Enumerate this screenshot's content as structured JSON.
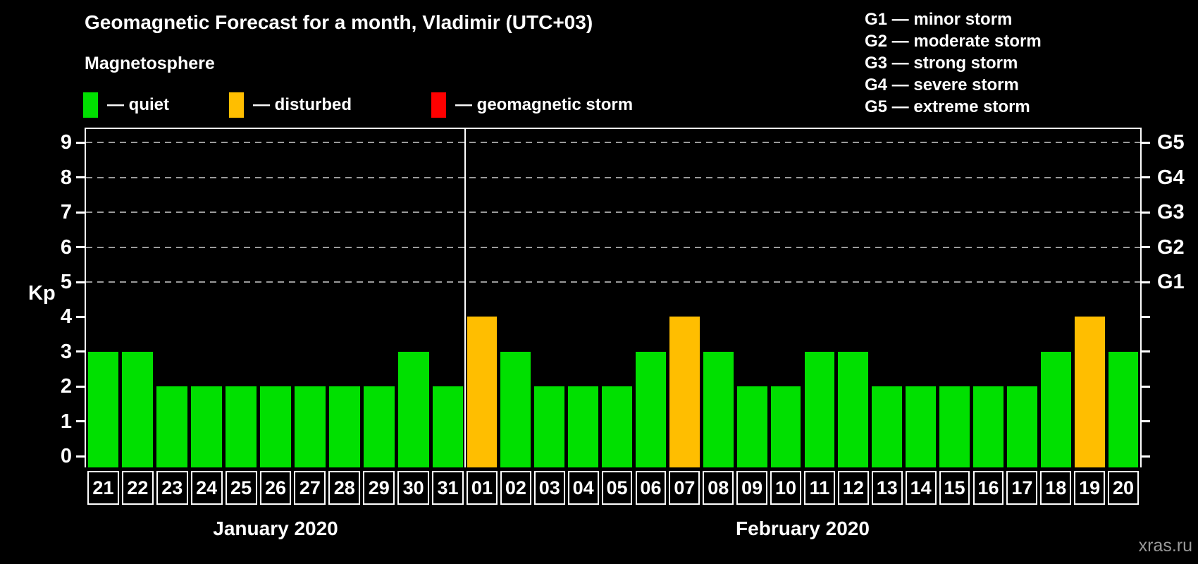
{
  "header": {
    "title": "Geomagnetic Forecast for a month, Vladimir (UTC+03)"
  },
  "legend": {
    "title": "Magnetosphere",
    "items": [
      {
        "name": "quiet",
        "label": "— quiet",
        "color": "#00e000"
      },
      {
        "name": "disturbed",
        "label": "— disturbed",
        "color": "#ffbe00"
      },
      {
        "name": "geomagnetic-storm",
        "label": "— geomagnetic storm",
        "color": "#ff0000"
      }
    ]
  },
  "g_legend": {
    "items": [
      {
        "label": "G1 — minor storm"
      },
      {
        "label": "G2 — moderate storm"
      },
      {
        "label": "G3 — strong storm"
      },
      {
        "label": "G4 — severe storm"
      },
      {
        "label": "G5 — extreme storm"
      }
    ]
  },
  "chart_data": {
    "type": "bar",
    "title": "Geomagnetic Forecast for a month, Vladimir (UTC+03)",
    "ylabel": "Kp",
    "ylim": [
      0,
      9
    ],
    "y_ticks": [
      0,
      1,
      2,
      3,
      4,
      5,
      6,
      7,
      8,
      9
    ],
    "grid_levels": [
      5,
      6,
      7,
      8,
      9
    ],
    "grid_style": "dashed",
    "right_axis_labels": [
      {
        "label": "G1",
        "kp": 5
      },
      {
        "label": "G2",
        "kp": 6
      },
      {
        "label": "G3",
        "kp": 7
      },
      {
        "label": "G4",
        "kp": 8
      },
      {
        "label": "G5",
        "kp": 9
      }
    ],
    "state_colors": {
      "quiet": "#00e000",
      "disturbed": "#ffbe00",
      "storm": "#ff0000"
    },
    "months": [
      {
        "label": "January 2020",
        "days": [
          {
            "date": "21",
            "kp": 3,
            "state": "quiet"
          },
          {
            "date": "22",
            "kp": 3,
            "state": "quiet"
          },
          {
            "date": "23",
            "kp": 2,
            "state": "quiet"
          },
          {
            "date": "24",
            "kp": 2,
            "state": "quiet"
          },
          {
            "date": "25",
            "kp": 2,
            "state": "quiet"
          },
          {
            "date": "26",
            "kp": 2,
            "state": "quiet"
          },
          {
            "date": "27",
            "kp": 2,
            "state": "quiet"
          },
          {
            "date": "28",
            "kp": 2,
            "state": "quiet"
          },
          {
            "date": "29",
            "kp": 2,
            "state": "quiet"
          },
          {
            "date": "30",
            "kp": 3,
            "state": "quiet"
          },
          {
            "date": "31",
            "kp": 2,
            "state": "quiet"
          }
        ]
      },
      {
        "label": "February 2020",
        "days": [
          {
            "date": "01",
            "kp": 4,
            "state": "disturbed"
          },
          {
            "date": "02",
            "kp": 3,
            "state": "quiet"
          },
          {
            "date": "03",
            "kp": 2,
            "state": "quiet"
          },
          {
            "date": "04",
            "kp": 2,
            "state": "quiet"
          },
          {
            "date": "05",
            "kp": 2,
            "state": "quiet"
          },
          {
            "date": "06",
            "kp": 3,
            "state": "quiet"
          },
          {
            "date": "07",
            "kp": 4,
            "state": "disturbed"
          },
          {
            "date": "08",
            "kp": 3,
            "state": "quiet"
          },
          {
            "date": "09",
            "kp": 2,
            "state": "quiet"
          },
          {
            "date": "10",
            "kp": 2,
            "state": "quiet"
          },
          {
            "date": "11",
            "kp": 3,
            "state": "quiet"
          },
          {
            "date": "12",
            "kp": 3,
            "state": "quiet"
          },
          {
            "date": "13",
            "kp": 2,
            "state": "quiet"
          },
          {
            "date": "14",
            "kp": 2,
            "state": "quiet"
          },
          {
            "date": "15",
            "kp": 2,
            "state": "quiet"
          },
          {
            "date": "16",
            "kp": 2,
            "state": "quiet"
          },
          {
            "date": "17",
            "kp": 2,
            "state": "quiet"
          },
          {
            "date": "18",
            "kp": 3,
            "state": "quiet"
          },
          {
            "date": "19",
            "kp": 4,
            "state": "disturbed"
          },
          {
            "date": "20",
            "kp": 3,
            "state": "quiet"
          }
        ]
      }
    ]
  },
  "watermark": "xras.ru"
}
